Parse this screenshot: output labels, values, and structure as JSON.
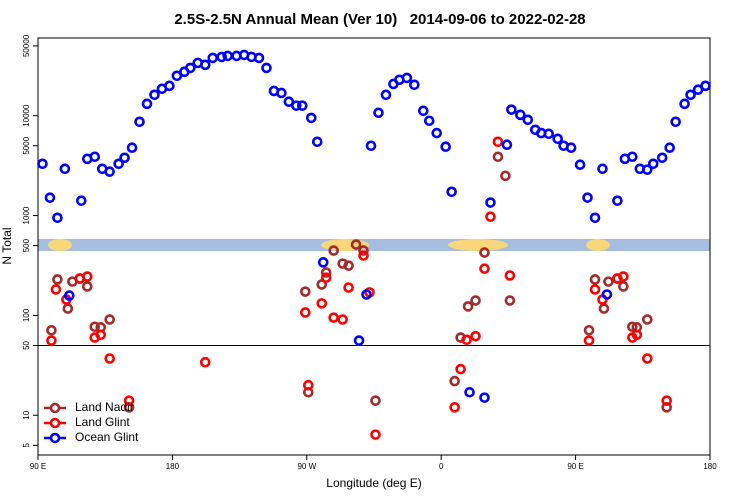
{
  "chart_data": {
    "type": "scatter",
    "title": "2.5S-2.5N Annual Mean (Ver 10)   2014-09-06 to 2022-02-28",
    "x_label": "Longitude (deg E)",
    "y_label": "N Total",
    "log_y": true,
    "xlim": [
      90,
      540
    ],
    "ylim": [
      4,
      60000
    ],
    "xticks": [
      {
        "value": 90,
        "label": "90 E"
      },
      180,
      {
        "value": 270,
        "label": "90 W"
      },
      {
        "value": 360,
        "label": "0"
      },
      {
        "value": 450,
        "label": "90 E"
      },
      {
        "value": 540,
        "label": "180"
      }
    ],
    "yticks": [
      5,
      10,
      50,
      100,
      500,
      1000,
      5000,
      10000,
      50000
    ],
    "hline": 50,
    "legend": "bottom-left",
    "series": [
      {
        "name": "Land Nadir",
        "color": "#a52a2a",
        "x": [
          99,
          103,
          110,
          113,
          118,
          123,
          128,
          132,
          138,
          151,
          269,
          271,
          280,
          283,
          288,
          294,
          298,
          303,
          308,
          316,
          369,
          373,
          378,
          383,
          389,
          398,
          403,
          406,
          459,
          463,
          469,
          472,
          478,
          482,
          488,
          491,
          498,
          511
        ],
        "values": [
          71,
          229,
          117,
          218,
          234,
          195,
          77,
          76,
          91,
          12,
          173,
          17,
          204,
          269,
          446,
          330,
          315,
          512,
          446,
          14,
          22,
          60,
          123,
          141,
          426,
          3880,
          2500,
          141,
          71,
          229,
          117,
          218,
          234,
          195,
          77,
          76,
          91,
          12
        ]
      },
      {
        "name": "Land Glint",
        "color": "#ff0000",
        "x": [
          99,
          102,
          109,
          118,
          123,
          128,
          132,
          138,
          151,
          202,
          269,
          271,
          280,
          283,
          288,
          294,
          298,
          308,
          312,
          316,
          369,
          373,
          377,
          383,
          389,
          393,
          398,
          406,
          459,
          463,
          468,
          478,
          482,
          488,
          491,
          498,
          511
        ],
        "values": [
          56,
          182,
          144,
          234,
          245,
          60,
          64,
          37,
          14,
          34,
          107,
          20,
          132,
          239,
          95,
          91,
          190,
          397,
          170,
          6.4,
          12,
          29,
          57,
          62,
          294,
          975,
          5480,
          251,
          56,
          182,
          144,
          234,
          245,
          60,
          64,
          37,
          14
        ]
      },
      {
        "name": "Ocean Glint",
        "color": "#0000ff",
        "x": [
          93,
          98,
          103,
          108,
          111,
          119,
          123,
          128,
          133,
          138,
          144,
          148,
          153,
          158,
          163,
          168,
          173,
          178,
          183,
          188,
          192,
          197,
          202,
          207,
          213,
          217,
          223,
          228,
          233,
          238,
          243,
          248,
          253,
          258,
          263,
          267,
          273,
          277,
          281,
          305,
          310,
          313,
          318,
          323,
          328,
          332,
          337,
          342,
          348,
          352,
          357,
          363,
          367,
          379,
          389,
          393,
          404,
          407,
          413,
          418,
          423,
          427,
          432,
          438,
          442,
          447,
          453,
          458,
          463,
          468,
          471,
          478,
          483,
          488,
          493,
          498,
          502,
          508,
          513,
          517,
          523,
          527,
          532,
          537
        ],
        "values": [
          3300,
          1510,
          950,
          2940,
          158,
          1410,
          3700,
          3880,
          2940,
          2750,
          3300,
          3790,
          4780,
          8690,
          13150,
          16200,
          18600,
          19900,
          25100,
          27500,
          30100,
          33800,
          32300,
          37900,
          38800,
          39700,
          39700,
          40600,
          38800,
          37900,
          30100,
          17700,
          16900,
          13800,
          12600,
          12600,
          9500,
          5480,
          340,
          56,
          162,
          5000,
          10700,
          16200,
          20800,
          22900,
          23900,
          20400,
          11200,
          8900,
          6700,
          4890,
          1730,
          17,
          15,
          1350,
          5120,
          11500,
          10200,
          9100,
          7230,
          6700,
          6590,
          5870,
          5000,
          4780,
          3230,
          1510,
          950,
          2940,
          162,
          1410,
          3700,
          3880,
          2940,
          2880,
          3300,
          3790,
          4780,
          8690,
          13150,
          16200,
          18200,
          19900
        ]
      }
    ]
  }
}
